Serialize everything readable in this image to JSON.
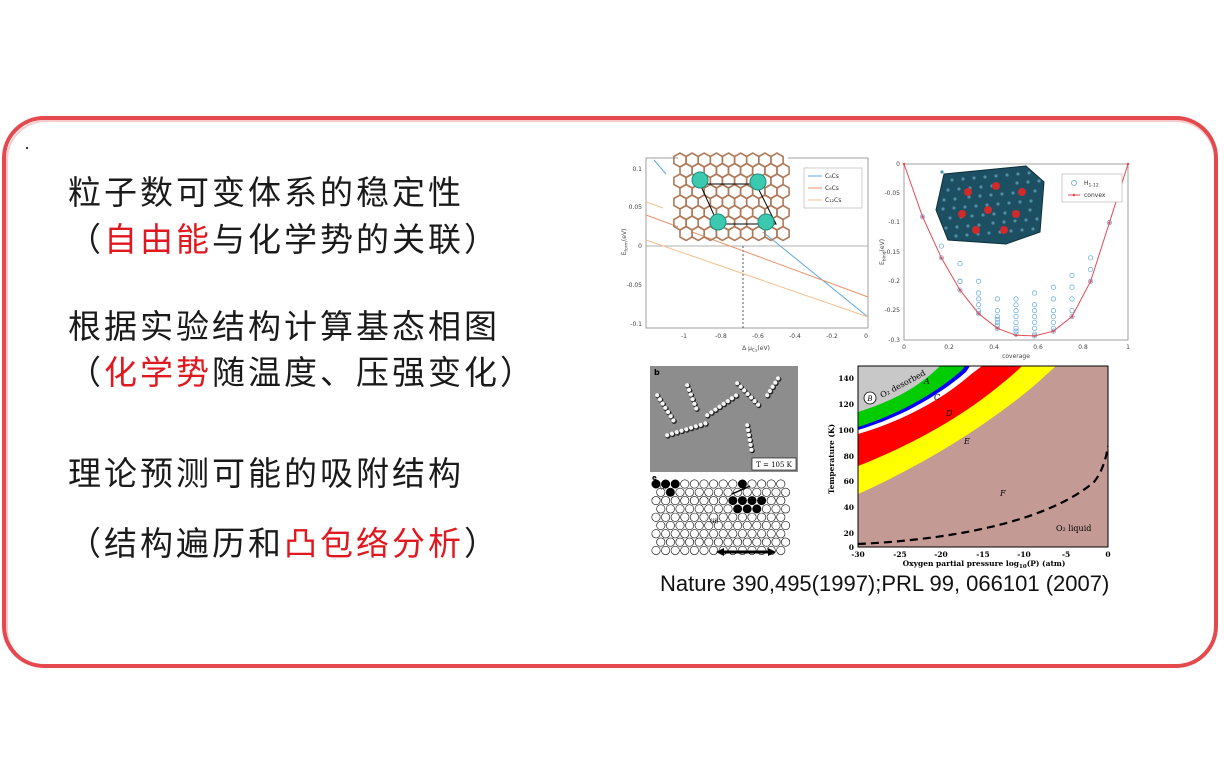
{
  "slide": {
    "line1": "粒子数可变体系的稳定性",
    "line2_open": "（",
    "line2_red": "自由能",
    "line2_rest": "与化学势的关联",
    "line2_close": "）",
    "line3": "根据实验结构计算基态相图",
    "line4_open": "（",
    "line4_red": "化学势",
    "line4_rest": "随温度、压强变化",
    "line4_close": "）",
    "line5": "理论预测可能的吸附结构",
    "line6_open": "（",
    "line6_black": "结构遍历和",
    "line6_red": "凸包络分析",
    "line6_close": "）",
    "citation": "Nature 390,495(1997);PRL 99, 066101 (2007)",
    "accent_color": "#e0181f",
    "frame_color": "#e5484d"
  },
  "fig_a": {
    "ylabel": "E",
    "ylabel_sub": "form",
    "ylabel_unit": "(eV)",
    "xlabel": "Δ μ",
    "xlabel_sub": "Cs",
    "xlabel_unit": "(eV)",
    "yticks": [
      "0.1",
      "0.05",
      "0",
      "-0.05",
      "-0.1"
    ],
    "xticks": [
      "-1",
      "-0.8",
      "-0.6",
      "-0.4",
      "-0.2",
      "0"
    ],
    "legend": [
      "C₈Cs",
      "C₆Cs",
      "C₁₂Cs"
    ],
    "colors": [
      "#5fa8dc",
      "#e9926a",
      "#f3c08e"
    ]
  },
  "fig_b": {
    "ylabel": "E",
    "ylabel_sub": "bind",
    "ylabel_unit": "(eV)",
    "xlabel": "coverage",
    "yticks": [
      "0",
      "-0.05",
      "-0.1",
      "-0.15",
      "-0.2",
      "-0.25",
      "-0.3"
    ],
    "xticks": [
      "0",
      "0.2",
      "0.4",
      "0.6",
      "0.8",
      "1"
    ],
    "legend": [
      "H",
      "convex"
    ],
    "legend_h_sub": "1-12",
    "convex_points": [
      [
        0,
        0
      ],
      [
        0.083,
        -0.09
      ],
      [
        0.167,
        -0.16
      ],
      [
        0.25,
        -0.215
      ],
      [
        0.333,
        -0.255
      ],
      [
        0.417,
        -0.28
      ],
      [
        0.5,
        -0.292
      ],
      [
        0.583,
        -0.293
      ],
      [
        0.667,
        -0.285
      ],
      [
        0.75,
        -0.26
      ],
      [
        0.833,
        -0.2
      ],
      [
        0.917,
        -0.1
      ],
      [
        1,
        0
      ]
    ]
  },
  "fig_stm": {
    "panel_b": "b",
    "label": "T = 105 K",
    "panel_e": "e",
    "mark_i": "(i)",
    "mark_ii": "(ii)"
  },
  "fig_phase": {
    "ylabel": "Temperature (K)",
    "xlabel": "Oxygen partial pressure log",
    "xlabel_sub": "10",
    "xlabel_unit": "(P) (atm)",
    "yticks": [
      "140",
      "120",
      "100",
      "80",
      "60",
      "40",
      "20",
      "0"
    ],
    "xticks": [
      "-30",
      "-25",
      "-20",
      "-15",
      "-10",
      "-5",
      "0"
    ],
    "regions": [
      "A",
      "B",
      "C",
      "D",
      "E",
      "F"
    ],
    "desorbed_label": "O₂ desorbed",
    "liquid_label": "O₂ liquid",
    "colors": {
      "F": "#c49a95",
      "E": "#ffff00",
      "D": "#ff0000",
      "C": "#ffffff",
      "blue": "#0000ff",
      "A": "#00cc00",
      "top": "#c8c8c8"
    }
  }
}
